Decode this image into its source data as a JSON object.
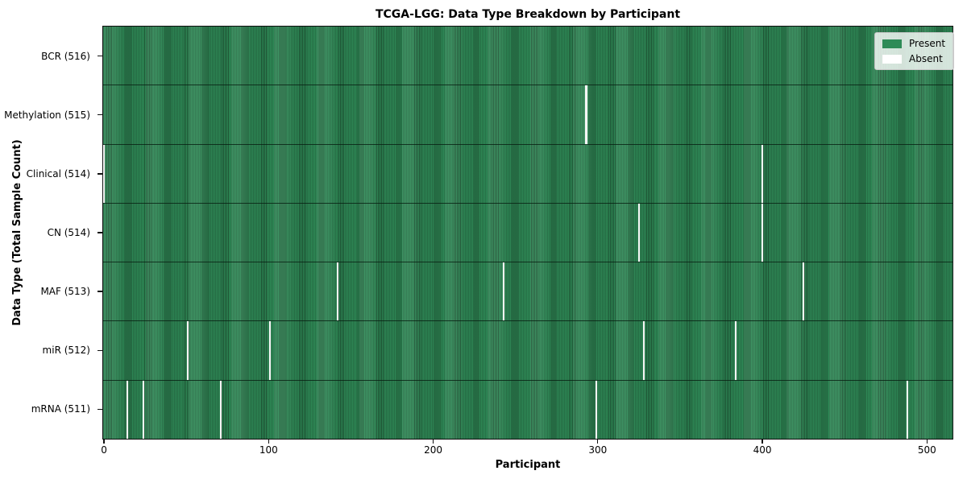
{
  "figure": {
    "title": "TCGA-LGG: Data Type Breakdown by Participant",
    "xlabel": "Participant",
    "ylabel": "Data Type (Total Sample Count)"
  },
  "chart_data": {
    "type": "heatmap",
    "title": "TCGA-LGG: Data Type Breakdown by Participant",
    "xlabel": "Participant",
    "ylabel": "Data Type (Total Sample Count)",
    "n_participants": 516,
    "x_ticks": [
      0,
      100,
      200,
      300,
      400,
      500
    ],
    "xlim": [
      -0.5,
      515.5
    ],
    "grid": false,
    "legend_position": "upper right",
    "colors": {
      "present": "#2e8b57",
      "cell_edge": "#1e5434",
      "absent": "#ffffff",
      "plot_border": "#0d0d0d"
    },
    "legend": [
      {
        "label": "Present",
        "color": "#2e8b57"
      },
      {
        "label": "Absent",
        "color": "#ffffff"
      }
    ],
    "rows": [
      {
        "label": "BCR (516)",
        "data_type": "BCR",
        "present_count": 516,
        "absent_participants": []
      },
      {
        "label": "Methylation (515)",
        "data_type": "Methylation",
        "present_count": 515,
        "absent_participants": [
          293
        ]
      },
      {
        "label": "Clinical (514)",
        "data_type": "Clinical",
        "present_count": 514,
        "absent_participants": [
          0,
          400
        ]
      },
      {
        "label": "CN (514)",
        "data_type": "CN",
        "present_count": 514,
        "absent_participants": [
          325,
          400
        ]
      },
      {
        "label": "MAF (513)",
        "data_type": "MAF",
        "present_count": 513,
        "absent_participants": [
          142,
          243,
          425
        ]
      },
      {
        "label": "miR (512)",
        "data_type": "miR",
        "present_count": 512,
        "absent_participants": [
          51,
          101,
          328,
          384
        ]
      },
      {
        "label": "mRNA (511)",
        "data_type": "mRNA",
        "present_count": 511,
        "absent_participants": [
          14,
          24,
          71,
          299,
          488
        ]
      }
    ]
  }
}
